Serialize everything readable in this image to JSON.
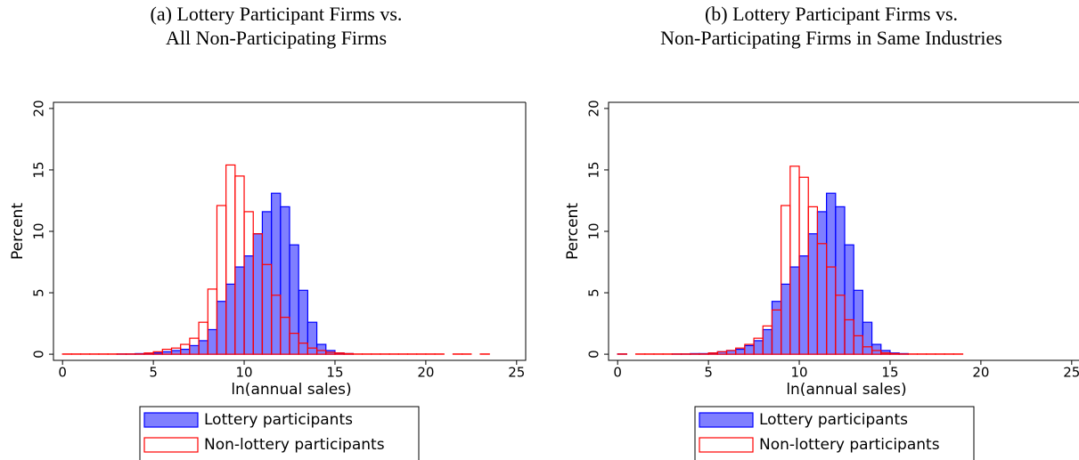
{
  "chart_data": [
    {
      "type": "histogram",
      "title": [
        "(a) Lottery Participant Firms vs.",
        "All Non-Participating Firms"
      ],
      "xlabel": "ln(annual sales)",
      "ylabel": "Percent",
      "bins": [
        0,
        0.5,
        1,
        1.5,
        2,
        2.5,
        3,
        3.5,
        4,
        4.5,
        5,
        5.5,
        6,
        6.5,
        7,
        7.5,
        8,
        8.5,
        9,
        9.5,
        10,
        10.5,
        11,
        11.5,
        12,
        12.5,
        13,
        13.5,
        14,
        14.5,
        15,
        15.5,
        16,
        16.5,
        17,
        17.5,
        18,
        18.5,
        19,
        19.5,
        20,
        20.5,
        21,
        21.5,
        22,
        22.5,
        23,
        23.5
      ],
      "series": [
        {
          "name": "Lottery participants",
          "color": "#0000ff",
          "filled": true,
          "values": [
            0,
            0,
            0,
            0,
            0,
            0,
            0.02,
            0.02,
            0.05,
            0.05,
            0.1,
            0.2,
            0.3,
            0.4,
            0.7,
            1.1,
            2.0,
            4.3,
            5.7,
            7.1,
            8.0,
            9.8,
            11.6,
            13.1,
            12.0,
            8.9,
            5.2,
            2.6,
            0.8,
            0.3,
            0.1,
            0.05,
            0,
            0,
            0,
            0,
            0,
            0,
            0,
            0,
            0,
            0,
            0,
            0,
            0,
            0,
            0
          ]
        },
        {
          "name": "Non-lottery participants",
          "color": "#ff0000",
          "filled": false,
          "values": [
            0.02,
            0.02,
            0.02,
            0.02,
            0.02,
            0.02,
            0.02,
            0.02,
            0.02,
            0.1,
            0.2,
            0.4,
            0.5,
            0.8,
            1.3,
            2.6,
            5.3,
            12.1,
            15.4,
            14.5,
            11.6,
            9.8,
            7.3,
            4.8,
            3.0,
            1.7,
            0.9,
            0.5,
            0.3,
            0.15,
            0.1,
            0.05,
            0.02,
            0.02,
            0.02,
            0.02,
            0.02,
            0.02,
            0.02,
            0.02,
            0.02,
            0.02,
            0,
            0.02,
            0.02,
            0,
            0.02
          ]
        }
      ],
      "xlim": [
        -0.5,
        25.5
      ],
      "ylim": [
        -0.5,
        20.5
      ],
      "xticks": [
        0,
        5,
        10,
        15,
        20,
        25
      ],
      "yticks": [
        0,
        5,
        10,
        15,
        20
      ]
    },
    {
      "type": "histogram",
      "title": [
        "(b) Lottery Participant Firms vs.",
        "Non-Participating Firms in Same Industries"
      ],
      "xlabel": "ln(annual sales)",
      "ylabel": "Percent",
      "bins": [
        0,
        0.5,
        1,
        1.5,
        2,
        2.5,
        3,
        3.5,
        4,
        4.5,
        5,
        5.5,
        6,
        6.5,
        7,
        7.5,
        8,
        8.5,
        9,
        9.5,
        10,
        10.5,
        11,
        11.5,
        12,
        12.5,
        13,
        13.5,
        14,
        14.5,
        15,
        15.5,
        16,
        16.5,
        17,
        17.5,
        18,
        18.5,
        19,
        19.5,
        20,
        20.5,
        21,
        21.5,
        22,
        22.5,
        23,
        23.5
      ],
      "series": [
        {
          "name": "Lottery participants",
          "color": "#0000ff",
          "filled": true,
          "values": [
            0.02,
            0,
            0,
            0,
            0,
            0,
            0.02,
            0.02,
            0.05,
            0.05,
            0.1,
            0.2,
            0.3,
            0.4,
            0.7,
            1.1,
            2.0,
            4.3,
            5.7,
            7.1,
            8.0,
            9.8,
            11.6,
            13.1,
            12.0,
            8.9,
            5.2,
            2.6,
            0.8,
            0.3,
            0.1,
            0.05,
            0,
            0,
            0,
            0,
            0,
            0,
            0,
            0,
            0,
            0,
            0,
            0,
            0,
            0,
            0
          ]
        },
        {
          "name": "Non-lottery participants",
          "color": "#ff0000",
          "filled": false,
          "values": [
            0.02,
            0,
            0.02,
            0.02,
            0.02,
            0.02,
            0.02,
            0.02,
            0.02,
            0.02,
            0.1,
            0.2,
            0.3,
            0.5,
            0.8,
            1.3,
            2.3,
            3.6,
            12.1,
            15.3,
            14.4,
            12.0,
            9.0,
            7.1,
            4.8,
            2.8,
            1.5,
            0.6,
            0.3,
            0.1,
            0.05,
            0.02,
            0.02,
            0.02,
            0.02,
            0.02,
            0.02,
            0.02,
            0,
            0,
            0,
            0,
            0,
            0,
            0,
            0,
            0
          ]
        }
      ],
      "xlim": [
        -0.5,
        25.5
      ],
      "ylim": [
        -0.5,
        20.5
      ],
      "xticks": [
        0,
        5,
        10,
        15,
        20,
        25
      ],
      "yticks": [
        0,
        5,
        10,
        15,
        20
      ]
    }
  ]
}
